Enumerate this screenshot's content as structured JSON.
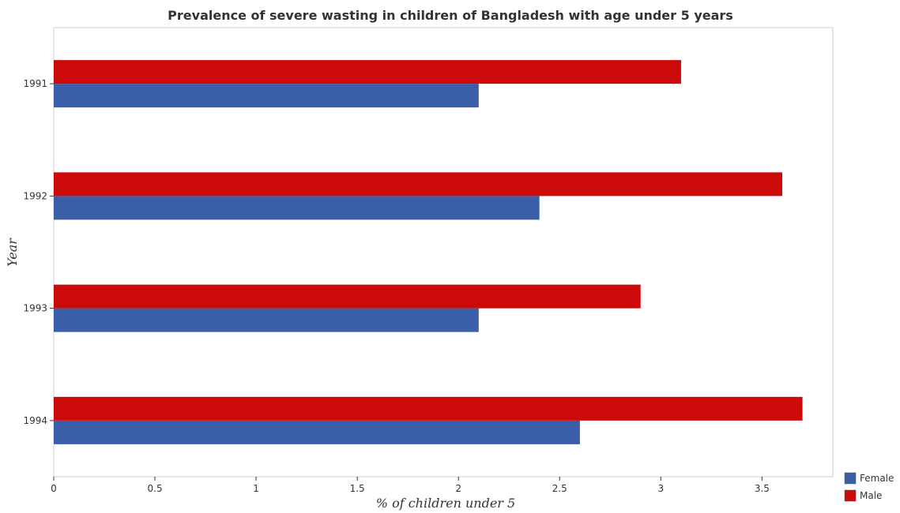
{
  "chart_data": {
    "type": "bar",
    "orientation": "horizontal",
    "title": "Prevalence of severe wasting in children of Bangladesh with age under 5 years",
    "xlabel": "% of children under 5",
    "ylabel": "Year",
    "categories": [
      "1991",
      "1992",
      "1993",
      "1994"
    ],
    "series": [
      {
        "name": "Female",
        "color": "#3a5ea8",
        "values": [
          2.1,
          2.4,
          2.1,
          2.6
        ]
      },
      {
        "name": "Male",
        "color": "#cc0a0a",
        "values": [
          3.1,
          3.6,
          2.9,
          3.7
        ]
      }
    ],
    "xlim": [
      0,
      3.85
    ],
    "xticks": [
      "0",
      "0.5",
      "1",
      "1.5",
      "2",
      "2.5",
      "3",
      "3.5"
    ],
    "grid": false,
    "legend_position": "bottom-right"
  }
}
